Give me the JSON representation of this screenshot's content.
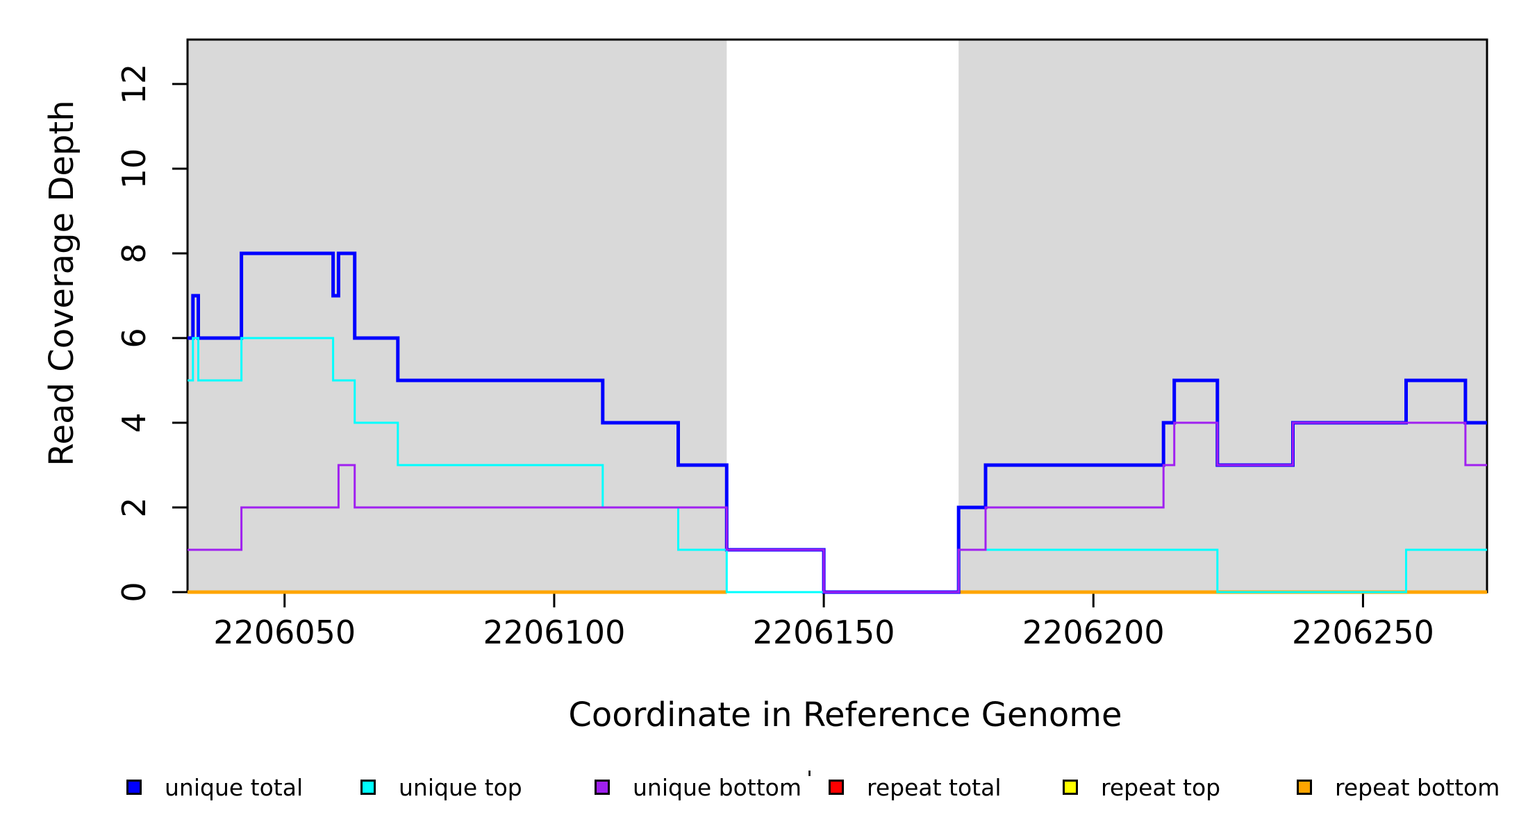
{
  "colors": {
    "background": "#FFFFFF",
    "shaded_region": "#D9D9D9",
    "frame": "#000000",
    "unique_total": "#0000FF",
    "unique_top": "#00FFFF",
    "unique_bottom": "#A020F0",
    "repeat_total": "#FF0000",
    "repeat_top": "#FFFF00",
    "repeat_bottom": "#FFA500"
  },
  "chart_data": {
    "type": "line",
    "step": true,
    "title": "",
    "xlabel": "Coordinate in Reference Genome",
    "ylabel": "Read Coverage Depth",
    "xlim": [
      2206032,
      2206273
    ],
    "ylim": [
      0,
      13.05
    ],
    "x_ticks": [
      2206050,
      2206100,
      2206150,
      2206200,
      2206250
    ],
    "y_ticks": [
      0,
      2,
      4,
      6,
      8,
      10,
      12
    ],
    "grid": false,
    "legend_position": "bottom",
    "shaded_regions": [
      {
        "x0": 2206032,
        "x1": 2206132
      },
      {
        "x0": 2206175,
        "x1": 2206273
      }
    ],
    "series": [
      {
        "name": "repeat total",
        "color_key": "repeat_total",
        "width": 5,
        "segments": [
          [
            [
              2206032,
              0
            ],
            [
              2206132,
              0
            ]
          ],
          [
            [
              2206175,
              0
            ],
            [
              2206273,
              0
            ]
          ]
        ]
      },
      {
        "name": "repeat top",
        "color_key": "repeat_top",
        "width": 5,
        "segments": [
          [
            [
              2206032,
              0
            ],
            [
              2206132,
              0
            ]
          ],
          [
            [
              2206175,
              0
            ],
            [
              2206273,
              0
            ]
          ]
        ]
      },
      {
        "name": "repeat bottom",
        "color_key": "repeat_bottom",
        "width": 5,
        "segments": [
          [
            [
              2206032,
              0
            ],
            [
              2206132,
              0
            ]
          ],
          [
            [
              2206175,
              0
            ],
            [
              2206273,
              0
            ]
          ]
        ]
      },
      {
        "name": "unique total",
        "color_key": "unique_total",
        "width": 5,
        "segments": [
          [
            [
              2206032,
              6
            ],
            [
              2206033,
              7
            ],
            [
              2206034,
              6
            ],
            [
              2206042,
              8
            ],
            [
              2206059,
              7
            ],
            [
              2206060,
              8
            ],
            [
              2206063,
              6
            ],
            [
              2206071,
              5
            ],
            [
              2206109,
              4
            ],
            [
              2206123,
              3
            ],
            [
              2206132,
              1
            ],
            [
              2206150,
              0
            ],
            [
              2206175,
              2
            ],
            [
              2206180,
              3
            ],
            [
              2206213,
              4
            ],
            [
              2206215,
              5
            ],
            [
              2206223,
              3
            ],
            [
              2206237,
              4
            ],
            [
              2206258,
              5
            ],
            [
              2206269,
              4
            ],
            [
              2206273,
              4
            ]
          ]
        ]
      },
      {
        "name": "unique top",
        "color_key": "unique_top",
        "width": 3,
        "segments": [
          [
            [
              2206032,
              5
            ],
            [
              2206033,
              6
            ],
            [
              2206034,
              5
            ],
            [
              2206042,
              6
            ],
            [
              2206059,
              5
            ],
            [
              2206063,
              4
            ],
            [
              2206071,
              3
            ],
            [
              2206109,
              2
            ],
            [
              2206123,
              1
            ],
            [
              2206132,
              0
            ],
            [
              2206175,
              1
            ],
            [
              2206223,
              0
            ],
            [
              2206258,
              1
            ],
            [
              2206273,
              1
            ]
          ]
        ]
      },
      {
        "name": "unique bottom",
        "color_key": "unique_bottom",
        "width": 3,
        "segments": [
          [
            [
              2206032,
              1
            ],
            [
              2206042,
              2
            ],
            [
              2206060,
              3
            ],
            [
              2206063,
              2
            ],
            [
              2206132,
              1
            ],
            [
              2206150,
              0
            ],
            [
              2206175,
              1
            ],
            [
              2206180,
              2
            ],
            [
              2206213,
              3
            ],
            [
              2206215,
              4
            ],
            [
              2206223,
              3
            ],
            [
              2206237,
              4
            ],
            [
              2206269,
              3
            ],
            [
              2206273,
              3
            ]
          ]
        ]
      }
    ],
    "legend": {
      "items": [
        {
          "label": "unique total",
          "color_key": "unique_total"
        },
        {
          "label": "unique top",
          "color_key": "unique_top"
        },
        {
          "label": "unique bottom",
          "color_key": "unique_bottom"
        },
        {
          "label": "repeat total",
          "color_key": "repeat_total"
        },
        {
          "label": "repeat top",
          "color_key": "repeat_top"
        },
        {
          "label": "repeat bottom",
          "color_key": "repeat_bottom"
        }
      ]
    }
  }
}
